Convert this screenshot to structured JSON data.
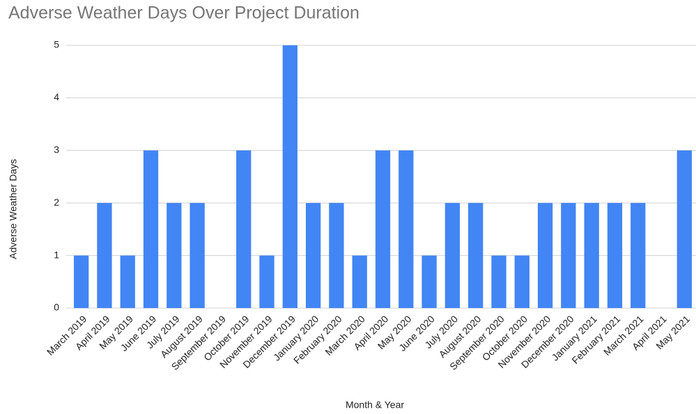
{
  "chart_data": {
    "type": "bar",
    "title": "Adverse Weather Days Over Project Duration",
    "x_label": "Month & Year",
    "y_label": "Adverse Weather Days",
    "categories": [
      "March 2019",
      "April 2019",
      "May 2019",
      "June 2019",
      "July 2019",
      "August 2019",
      "September 2019",
      "October 2019",
      "November 2019",
      "December 2019",
      "January 2020",
      "February 2020",
      "March 2020",
      "April 2020",
      "May 2020",
      "June 2020",
      "July 2020",
      "August 2020",
      "September 2020",
      "October 2020",
      "November 2020",
      "December 2020",
      "January 2021",
      "February 2021",
      "March 2021",
      "April 2021",
      "May 2021"
    ],
    "values": [
      1,
      2,
      1,
      3,
      2,
      2,
      0,
      3,
      1,
      5,
      2,
      2,
      1,
      3,
      3,
      1,
      2,
      2,
      1,
      1,
      2,
      2,
      2,
      2,
      2,
      0,
      3
    ],
    "color": "#4285f4",
    "ylim": [
      0,
      5
    ],
    "yticks": [
      0,
      1,
      2,
      3,
      4,
      5
    ],
    "grid": true
  }
}
